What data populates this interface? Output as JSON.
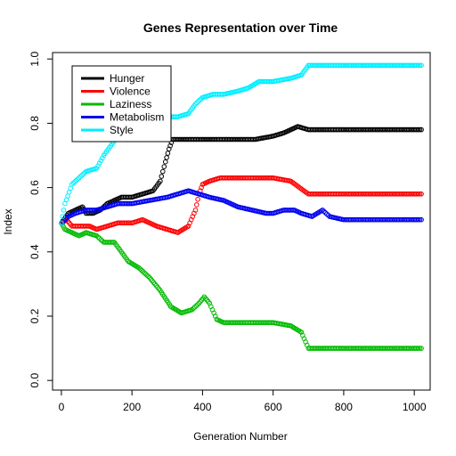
{
  "chart_data": {
    "type": "scatter",
    "title": "Genes Representation over Time",
    "xlabel": "Generation Number",
    "ylabel": "Index",
    "xlim": [
      -25,
      1045
    ],
    "ylim": [
      -0.03,
      1.02
    ],
    "xticks": [
      0,
      200,
      400,
      600,
      800,
      1000
    ],
    "yticks": [
      0.0,
      0.2,
      0.4,
      0.6,
      0.8,
      1.0
    ],
    "xtick_labels": [
      "0",
      "200",
      "400",
      "600",
      "800",
      "1000"
    ],
    "ytick_labels": [
      "0.0",
      "0.2",
      "0.4",
      "0.6",
      "0.8",
      "1.0"
    ],
    "grid": false,
    "legend_position": "top-left",
    "marker": "open-circle",
    "series": [
      {
        "name": "Hunger",
        "color": "#000000",
        "points": [
          [
            0,
            0.49
          ],
          [
            20,
            0.52
          ],
          [
            40,
            0.53
          ],
          [
            60,
            0.54
          ],
          [
            70,
            0.52
          ],
          [
            90,
            0.52
          ],
          [
            110,
            0.53
          ],
          [
            130,
            0.55
          ],
          [
            150,
            0.56
          ],
          [
            170,
            0.57
          ],
          [
            200,
            0.57
          ],
          [
            230,
            0.58
          ],
          [
            260,
            0.59
          ],
          [
            280,
            0.62
          ],
          [
            295,
            0.68
          ],
          [
            305,
            0.72
          ],
          [
            315,
            0.75
          ],
          [
            350,
            0.75
          ],
          [
            400,
            0.75
          ],
          [
            450,
            0.75
          ],
          [
            480,
            0.75
          ],
          [
            500,
            0.75
          ],
          [
            550,
            0.75
          ],
          [
            600,
            0.76
          ],
          [
            630,
            0.77
          ],
          [
            650,
            0.78
          ],
          [
            670,
            0.79
          ],
          [
            700,
            0.78
          ],
          [
            750,
            0.78
          ],
          [
            800,
            0.78
          ],
          [
            900,
            0.78
          ],
          [
            1020,
            0.78
          ]
        ]
      },
      {
        "name": "Violence",
        "color": "#ff0000",
        "points": [
          [
            0,
            0.49
          ],
          [
            15,
            0.5
          ],
          [
            30,
            0.48
          ],
          [
            60,
            0.48
          ],
          [
            80,
            0.48
          ],
          [
            100,
            0.47
          ],
          [
            130,
            0.48
          ],
          [
            160,
            0.49
          ],
          [
            200,
            0.49
          ],
          [
            230,
            0.5
          ],
          [
            250,
            0.49
          ],
          [
            270,
            0.48
          ],
          [
            300,
            0.47
          ],
          [
            330,
            0.46
          ],
          [
            360,
            0.48
          ],
          [
            380,
            0.53
          ],
          [
            390,
            0.58
          ],
          [
            400,
            0.61
          ],
          [
            420,
            0.62
          ],
          [
            450,
            0.63
          ],
          [
            500,
            0.63
          ],
          [
            550,
            0.63
          ],
          [
            600,
            0.63
          ],
          [
            650,
            0.62
          ],
          [
            700,
            0.58
          ],
          [
            750,
            0.58
          ],
          [
            800,
            0.58
          ],
          [
            900,
            0.58
          ],
          [
            1020,
            0.58
          ]
        ]
      },
      {
        "name": "Laziness",
        "color": "#00bb00",
        "points": [
          [
            0,
            0.49
          ],
          [
            10,
            0.47
          ],
          [
            30,
            0.46
          ],
          [
            50,
            0.45
          ],
          [
            70,
            0.46
          ],
          [
            100,
            0.45
          ],
          [
            120,
            0.43
          ],
          [
            150,
            0.43
          ],
          [
            170,
            0.4
          ],
          [
            190,
            0.37
          ],
          [
            220,
            0.35
          ],
          [
            250,
            0.32
          ],
          [
            280,
            0.28
          ],
          [
            310,
            0.23
          ],
          [
            340,
            0.21
          ],
          [
            370,
            0.22
          ],
          [
            390,
            0.24
          ],
          [
            405,
            0.26
          ],
          [
            420,
            0.24
          ],
          [
            440,
            0.19
          ],
          [
            460,
            0.18
          ],
          [
            500,
            0.18
          ],
          [
            550,
            0.18
          ],
          [
            600,
            0.18
          ],
          [
            650,
            0.17
          ],
          [
            680,
            0.15
          ],
          [
            700,
            0.1
          ],
          [
            750,
            0.1
          ],
          [
            800,
            0.1
          ],
          [
            900,
            0.1
          ],
          [
            1020,
            0.1
          ]
        ]
      },
      {
        "name": "Metabolism",
        "color": "#0000ee",
        "points": [
          [
            0,
            0.49
          ],
          [
            20,
            0.51
          ],
          [
            40,
            0.52
          ],
          [
            70,
            0.53
          ],
          [
            100,
            0.53
          ],
          [
            130,
            0.54
          ],
          [
            160,
            0.55
          ],
          [
            200,
            0.55
          ],
          [
            250,
            0.56
          ],
          [
            300,
            0.57
          ],
          [
            330,
            0.58
          ],
          [
            360,
            0.59
          ],
          [
            390,
            0.58
          ],
          [
            420,
            0.57
          ],
          [
            460,
            0.56
          ],
          [
            500,
            0.54
          ],
          [
            540,
            0.53
          ],
          [
            580,
            0.52
          ],
          [
            600,
            0.52
          ],
          [
            630,
            0.53
          ],
          [
            660,
            0.53
          ],
          [
            680,
            0.52
          ],
          [
            710,
            0.51
          ],
          [
            740,
            0.53
          ],
          [
            760,
            0.51
          ],
          [
            800,
            0.5
          ],
          [
            900,
            0.5
          ],
          [
            1020,
            0.5
          ]
        ]
      },
      {
        "name": "Style",
        "color": "#00eeff",
        "points": [
          [
            0,
            0.49
          ],
          [
            10,
            0.55
          ],
          [
            30,
            0.61
          ],
          [
            50,
            0.63
          ],
          [
            70,
            0.65
          ],
          [
            100,
            0.66
          ],
          [
            120,
            0.7
          ],
          [
            140,
            0.73
          ],
          [
            160,
            0.76
          ],
          [
            200,
            0.76
          ],
          [
            230,
            0.76
          ],
          [
            260,
            0.78
          ],
          [
            280,
            0.8
          ],
          [
            300,
            0.82
          ],
          [
            330,
            0.82
          ],
          [
            360,
            0.83
          ],
          [
            380,
            0.86
          ],
          [
            400,
            0.88
          ],
          [
            430,
            0.89
          ],
          [
            460,
            0.89
          ],
          [
            500,
            0.9
          ],
          [
            530,
            0.91
          ],
          [
            560,
            0.93
          ],
          [
            600,
            0.93
          ],
          [
            650,
            0.94
          ],
          [
            680,
            0.95
          ],
          [
            700,
            0.98
          ],
          [
            750,
            0.98
          ],
          [
            800,
            0.98
          ],
          [
            900,
            0.98
          ],
          [
            1020,
            0.98
          ]
        ]
      }
    ]
  }
}
